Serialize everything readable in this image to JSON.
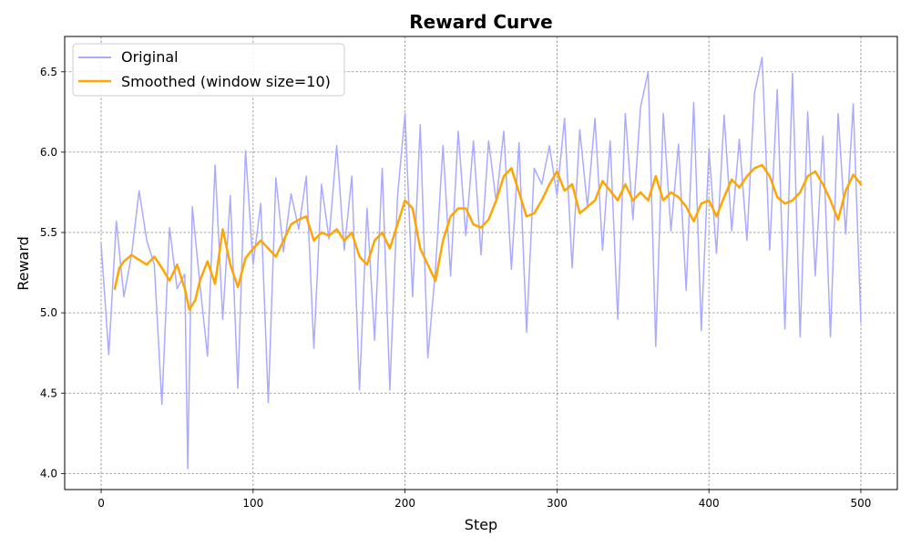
{
  "chart_data": {
    "type": "line",
    "title": "Reward Curve",
    "xlabel": "Step",
    "ylabel": "Reward",
    "xlim": [
      -24,
      524
    ],
    "ylim": [
      3.9,
      6.72
    ],
    "xticks": [
      0,
      100,
      200,
      300,
      400,
      500
    ],
    "yticks": [
      4.0,
      4.5,
      5.0,
      5.5,
      6.0,
      6.5
    ],
    "xtick_labels": [
      "0",
      "100",
      "200",
      "300",
      "400",
      "500"
    ],
    "ytick_labels": [
      "4.0",
      "4.5",
      "5.0",
      "5.5",
      "6.0",
      "6.5"
    ],
    "grid": true,
    "legend_position": "top-left",
    "series": [
      {
        "name": "Original",
        "color": "#aaaaff",
        "x": [
          0,
          5,
          10,
          15,
          20,
          25,
          30,
          35,
          40,
          45,
          50,
          55,
          57,
          60,
          65,
          70,
          75,
          80,
          85,
          90,
          95,
          100,
          105,
          110,
          115,
          120,
          125,
          130,
          135,
          140,
          145,
          150,
          155,
          160,
          165,
          170,
          175,
          180,
          185,
          190,
          195,
          200,
          205,
          210,
          215,
          220,
          225,
          230,
          235,
          240,
          245,
          250,
          255,
          260,
          265,
          270,
          275,
          280,
          285,
          290,
          295,
          300,
          305,
          310,
          315,
          320,
          325,
          330,
          335,
          340,
          345,
          350,
          355,
          360,
          365,
          370,
          375,
          380,
          385,
          390,
          395,
          400,
          405,
          410,
          415,
          420,
          425,
          430,
          435,
          440,
          445,
          450,
          455,
          460,
          465,
          470,
          475,
          480,
          485,
          490,
          495,
          500
        ],
        "values": [
          5.43,
          4.74,
          5.57,
          5.1,
          5.36,
          5.76,
          5.45,
          5.3,
          4.43,
          5.53,
          5.15,
          5.24,
          4.03,
          5.66,
          5.18,
          4.73,
          5.92,
          4.96,
          5.73,
          4.53,
          6.01,
          5.3,
          5.68,
          4.44,
          5.84,
          5.38,
          5.74,
          5.52,
          5.85,
          4.78,
          5.8,
          5.46,
          6.04,
          5.39,
          5.85,
          4.52,
          5.65,
          4.83,
          5.9,
          4.52,
          5.72,
          6.24,
          5.1,
          6.17,
          4.72,
          5.27,
          6.04,
          5.23,
          6.13,
          5.48,
          6.07,
          5.36,
          6.07,
          5.69,
          6.13,
          5.27,
          6.06,
          4.88,
          5.9,
          5.8,
          6.04,
          5.73,
          6.21,
          5.28,
          6.14,
          5.66,
          6.21,
          5.39,
          6.07,
          4.96,
          6.24,
          5.58,
          6.28,
          6.5,
          4.79,
          6.24,
          5.51,
          6.05,
          5.14,
          6.31,
          4.89,
          6.02,
          5.37,
          6.23,
          5.51,
          6.08,
          5.45,
          6.37,
          6.59,
          5.39,
          6.39,
          4.9,
          6.49,
          4.85,
          6.25,
          5.23,
          6.1,
          4.85,
          6.24,
          5.49,
          6.3,
          4.94
        ]
      },
      {
        "name": "Smoothed (window size=10)",
        "color": "#ffa500",
        "x": [
          9,
          12,
          15,
          20,
          25,
          30,
          35,
          40,
          45,
          50,
          55,
          58,
          62,
          65,
          70,
          75,
          80,
          85,
          90,
          95,
          100,
          105,
          110,
          115,
          120,
          125,
          130,
          135,
          140,
          145,
          150,
          155,
          160,
          165,
          170,
          175,
          180,
          185,
          190,
          195,
          200,
          205,
          210,
          215,
          220,
          225,
          230,
          235,
          240,
          245,
          250,
          255,
          260,
          265,
          270,
          275,
          280,
          285,
          290,
          295,
          300,
          305,
          310,
          315,
          320,
          325,
          330,
          335,
          340,
          345,
          350,
          355,
          360,
          365,
          370,
          375,
          380,
          385,
          390,
          395,
          400,
          405,
          410,
          415,
          420,
          425,
          430,
          435,
          440,
          445,
          450,
          455,
          460,
          465,
          470,
          475,
          480,
          485,
          490,
          495,
          500
        ],
        "values": [
          5.15,
          5.28,
          5.32,
          5.36,
          5.33,
          5.3,
          5.35,
          5.28,
          5.2,
          5.3,
          5.15,
          5.02,
          5.08,
          5.2,
          5.32,
          5.18,
          5.52,
          5.3,
          5.16,
          5.34,
          5.4,
          5.45,
          5.4,
          5.35,
          5.45,
          5.55,
          5.58,
          5.6,
          5.45,
          5.5,
          5.48,
          5.52,
          5.45,
          5.5,
          5.35,
          5.3,
          5.45,
          5.5,
          5.4,
          5.55,
          5.7,
          5.65,
          5.4,
          5.3,
          5.2,
          5.45,
          5.6,
          5.65,
          5.65,
          5.55,
          5.53,
          5.58,
          5.7,
          5.85,
          5.9,
          5.75,
          5.6,
          5.62,
          5.7,
          5.8,
          5.88,
          5.76,
          5.8,
          5.62,
          5.66,
          5.7,
          5.82,
          5.76,
          5.7,
          5.8,
          5.7,
          5.75,
          5.7,
          5.85,
          5.7,
          5.75,
          5.72,
          5.66,
          5.57,
          5.68,
          5.7,
          5.6,
          5.72,
          5.83,
          5.78,
          5.85,
          5.9,
          5.92,
          5.85,
          5.72,
          5.68,
          5.7,
          5.75,
          5.85,
          5.88,
          5.8,
          5.7,
          5.58,
          5.76,
          5.86,
          5.8
        ]
      }
    ]
  }
}
